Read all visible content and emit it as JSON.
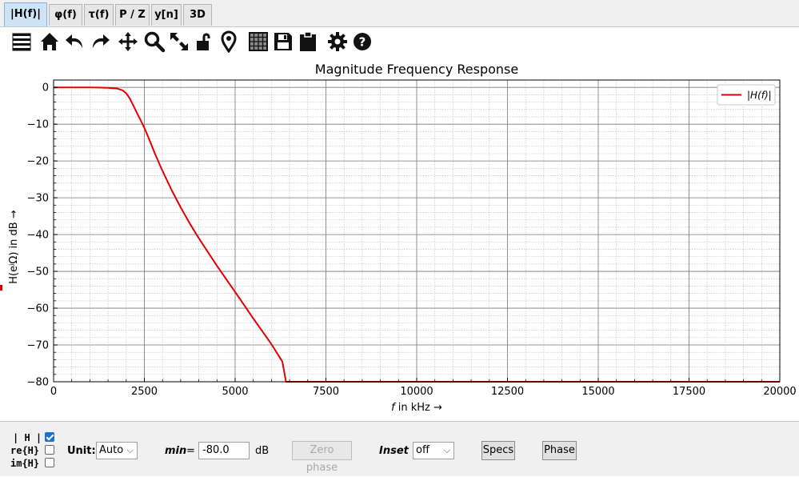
{
  "tabs": [
    {
      "label": "|H(f)|",
      "active": true
    },
    {
      "label": "φ(f)",
      "active": false
    },
    {
      "label": "τ(f)",
      "active": false
    },
    {
      "label": "P / Z",
      "active": false
    },
    {
      "label": "y[n]",
      "active": false
    },
    {
      "label": "3D",
      "active": false
    }
  ],
  "toolbar": {
    "icons": [
      "menu-icon",
      "home-icon",
      "undo-icon",
      "redo-icon",
      "pan-icon",
      "zoom-icon",
      "fit-icon",
      "lock-icon",
      "marker-icon",
      "grid-icon",
      "save-icon",
      "clipboard-icon",
      "settings-icon",
      "help-icon"
    ]
  },
  "chart_data": {
    "type": "line",
    "title": "Magnitude Frequency Response",
    "xlabel_var": "f",
    "xlabel_rest": " in kHz →",
    "ylabel": "H(eʲΩ) in dB →",
    "xlim": [
      0,
      20000
    ],
    "ylim": [
      -80,
      2
    ],
    "xticks": [
      0,
      2500,
      5000,
      7500,
      10000,
      12500,
      15000,
      17500,
      20000
    ],
    "yticks": [
      0,
      -10,
      -20,
      -30,
      -40,
      -50,
      -60,
      -70,
      -80
    ],
    "grid": true,
    "legend_position": "top-right",
    "series": [
      {
        "name": "|H(f)|",
        "color": "#e00000",
        "x": [
          0,
          1000,
          1500,
          1750,
          1900,
          2000,
          2100,
          2200,
          2300,
          2400,
          2500,
          2600,
          2800,
          3000,
          3250,
          3500,
          3750,
          4000,
          4500,
          5000,
          5500,
          6000,
          6300,
          6400,
          20000
        ],
        "y": [
          0,
          0,
          -0.1,
          -0.3,
          -0.8,
          -1.6,
          -3,
          -5,
          -7,
          -9,
          -11,
          -13.3,
          -18.2,
          -22.7,
          -27.9,
          -32.6,
          -37,
          -41,
          -48.5,
          -55.6,
          -62.8,
          -69.8,
          -74.5,
          -80,
          -80
        ]
      }
    ]
  },
  "controls": {
    "h_label": "| H |",
    "re_label": "re{H}",
    "im_label": "im{H}",
    "h_checked": true,
    "re_checked": false,
    "im_checked": false,
    "unit_label": "Unit:",
    "unit_value": "Auto",
    "min_label": "min",
    "min_eq": "=",
    "min_value": "-80.0",
    "min_unit": "dB",
    "zero_phase_label": "Zero phase",
    "inset_label": "Inset",
    "inset_value": "off",
    "specs_label": "Specs",
    "phase_label": "Phase"
  }
}
